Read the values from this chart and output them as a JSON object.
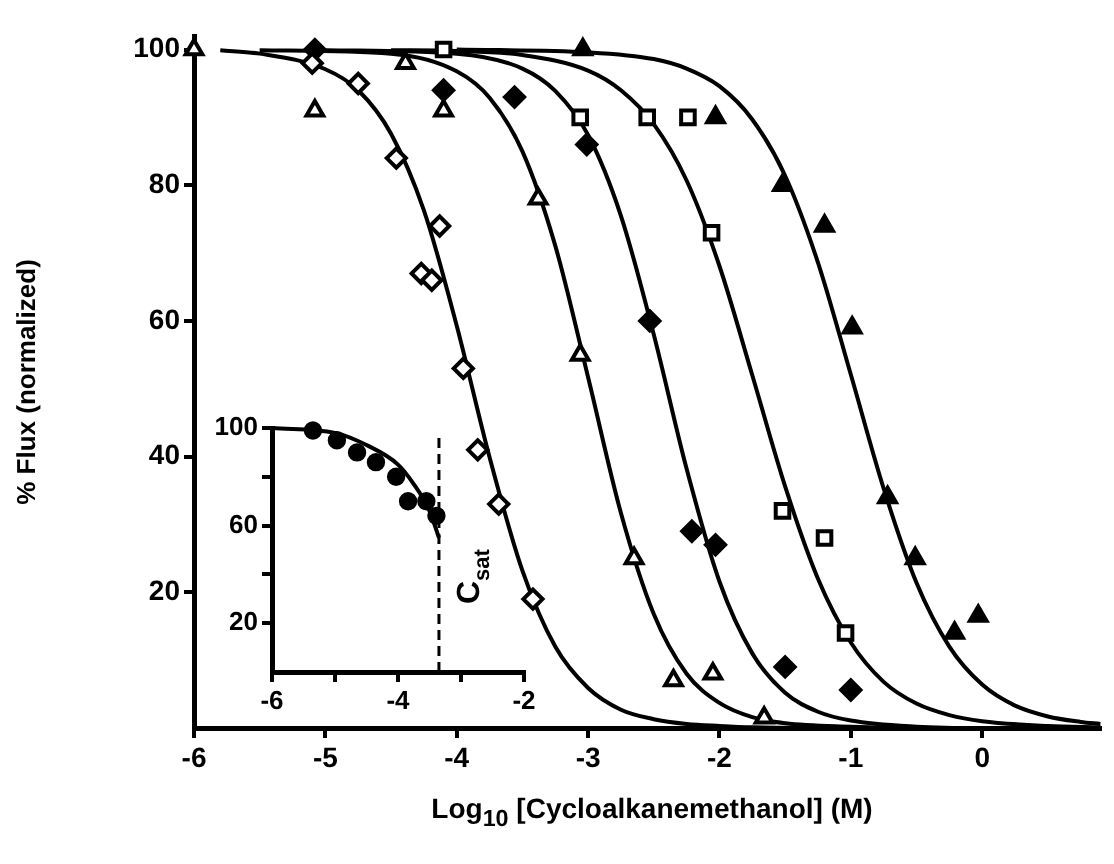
{
  "chart_data": [
    {
      "type": "scatter",
      "xlabel": "Log$_{10}$ [Cycloalkanemethanol]  (M)",
      "ylabel": "% Flux (normalized)",
      "xlim": [
        -6,
        0.9
      ],
      "ylim": [
        0,
        102
      ],
      "xticks": [
        -6,
        -5,
        -4,
        -3,
        -2,
        -1,
        0
      ],
      "yticks": [
        20,
        40,
        60,
        80,
        100
      ],
      "grid": false,
      "legend": false,
      "series": [
        {
          "type": "scatter",
          "marker": "diamond",
          "color": "#ffffff",
          "x": [
            -5.1,
            -4.75,
            -4.46,
            -4.27,
            -4.19,
            -4.13,
            -3.95,
            -3.84,
            -3.68,
            -3.42
          ],
          "values": [
            98,
            95,
            84,
            67,
            66,
            74,
            53,
            41,
            33,
            19
          ]
        },
        {
          "type": "scatter",
          "marker": "triangle",
          "color": "#ffffff",
          "x": [
            -6,
            -5.08,
            -4.39,
            -4.1,
            -3.38,
            -3.06,
            -2.65,
            -2.35,
            -2.05,
            -1.66
          ],
          "values": [
            100,
            91,
            98,
            91,
            78,
            55,
            25,
            7,
            8,
            1.5
          ]
        },
        {
          "type": "scatter",
          "marker": "diamond",
          "color": "#000000",
          "x": [
            -5.08,
            -4.1,
            -3.56,
            -3.01,
            -2.53,
            -2.21,
            -2.03,
            -1.5,
            -1.0
          ],
          "values": [
            100,
            94,
            93,
            86,
            60,
            29,
            27,
            9,
            5.6
          ]
        },
        {
          "type": "scatter",
          "marker": "square",
          "color": "#ffffff",
          "x": [
            -4.1,
            -3.06,
            -2.55,
            -2.24,
            -2.06,
            -1.52,
            -1.2,
            -1.04
          ],
          "values": [
            100,
            90,
            90,
            90,
            73,
            32,
            28,
            14
          ]
        },
        {
          "type": "scatter",
          "marker": "triangle",
          "color": "#000000",
          "x": [
            -3.04,
            -2.03,
            -1.52,
            -1.2,
            -0.99,
            -0.72,
            -0.51,
            -0.21,
            -0.03
          ],
          "values": [
            100,
            90,
            80,
            74,
            59,
            34,
            25,
            14,
            16.5
          ]
        },
        {
          "type": "line",
          "marker": "none",
          "color": "#000000",
          "x": [
            -5.8,
            -5.5,
            -5,
            -4.75,
            -4.5,
            -4.25,
            -4,
            -3.75,
            -3.5,
            -3.25,
            -3,
            -2.75,
            -2.5,
            -2.25,
            -2,
            -1.75,
            -1,
            0,
            0.9
          ],
          "values": [
            99.9,
            99.4,
            97.1,
            94,
            87.6,
            76.3,
            59.3,
            39.9,
            23.2,
            12,
            5.9,
            2.7,
            1.3,
            0.6,
            0.3,
            0.1,
            0,
            0,
            0
          ]
        },
        {
          "type": "line",
          "marker": "none",
          "color": "#000000",
          "x": [
            -5.5,
            -4.5,
            -4,
            -3.75,
            -3.5,
            -3.25,
            -3,
            -2.75,
            -2.5,
            -2.25,
            -2,
            -1.75,
            -1.5,
            -1,
            -0.5,
            0.9
          ],
          "values": [
            99.9,
            99.4,
            96.8,
            92.9,
            85,
            71.1,
            51.7,
            31.7,
            16.8,
            8,
            3.7,
            1.6,
            0.7,
            0.2,
            0,
            0
          ]
        },
        {
          "type": "line",
          "marker": "none",
          "color": "#000000",
          "x": [
            -5,
            -4,
            -3.5,
            -3.25,
            -3,
            -2.75,
            -2.5,
            -2.25,
            -2,
            -1.75,
            -1.5,
            -1.25,
            -1,
            -0.5,
            0,
            0.9
          ],
          "values": [
            99.9,
            99.4,
            97.2,
            93.9,
            87.4,
            75.5,
            58,
            38.2,
            21.6,
            11,
            5.2,
            2.4,
            1.1,
            0.2,
            0,
            0
          ]
        },
        {
          "type": "line",
          "marker": "none",
          "color": "#000000",
          "x": [
            -4.5,
            -4,
            -3.5,
            -3,
            -2.75,
            -2.5,
            -2.25,
            -2,
            -1.75,
            -1.5,
            -1.25,
            -1,
            -0.75,
            -0.5,
            -0.25,
            0,
            0.5,
            0.9
          ],
          "values": [
            99.9,
            99.8,
            99.2,
            96.9,
            94,
            89,
            80.7,
            68.1,
            52,
            35.6,
            22,
            12.6,
            6.8,
            3.6,
            1.9,
            1,
            0.3,
            0.1
          ]
        },
        {
          "type": "line",
          "marker": "none",
          "color": "#000000",
          "x": [
            -4,
            -3,
            -2.5,
            -2.25,
            -2,
            -1.75,
            -1.5,
            -1.25,
            -1,
            -0.75,
            -0.5,
            -0.25,
            0,
            0.25,
            0.5,
            0.75,
            0.9
          ],
          "values": [
            100,
            99.6,
            98.6,
            97.2,
            94.6,
            89.7,
            81.4,
            68.6,
            52.1,
            35.3,
            21.4,
            12,
            6.4,
            3.3,
            1.7,
            0.9,
            0.6
          ]
        }
      ]
    },
    {
      "type": "scatter",
      "xlim": [
        -6,
        -2
      ],
      "ylim": [
        0,
        100
      ],
      "xticks": [
        -6,
        {
          "value": -5,
          "label": null
        },
        -4,
        {
          "value": -3,
          "label": null
        },
        -2
      ],
      "yticks": [
        20,
        {
          "value": 40,
          "label": null
        },
        60,
        {
          "value": 80,
          "label": null
        },
        100
      ],
      "grid": false,
      "legend": false,
      "ref_lines": [
        {
          "axis": "x",
          "value": -3.35,
          "label": "C$_{sat}$",
          "line_style": "dashed"
        }
      ],
      "series": [
        {
          "type": "scatter",
          "marker": "circle",
          "color": "#000000",
          "x": [
            -5.35,
            -4.97,
            -4.65,
            -4.35,
            -4.03,
            -3.84,
            -3.55,
            -3.39
          ],
          "values": [
            99,
            95,
            90,
            86,
            80,
            70,
            70,
            64
          ]
        },
        {
          "type": "line",
          "marker": "none",
          "color": "#000000",
          "x": [
            -6,
            -5,
            -4.5,
            -4,
            -3.75,
            -3.5,
            -3.35
          ],
          "values": [
            100,
            98,
            93,
            85,
            77,
            66,
            55
          ]
        }
      ]
    }
  ]
}
